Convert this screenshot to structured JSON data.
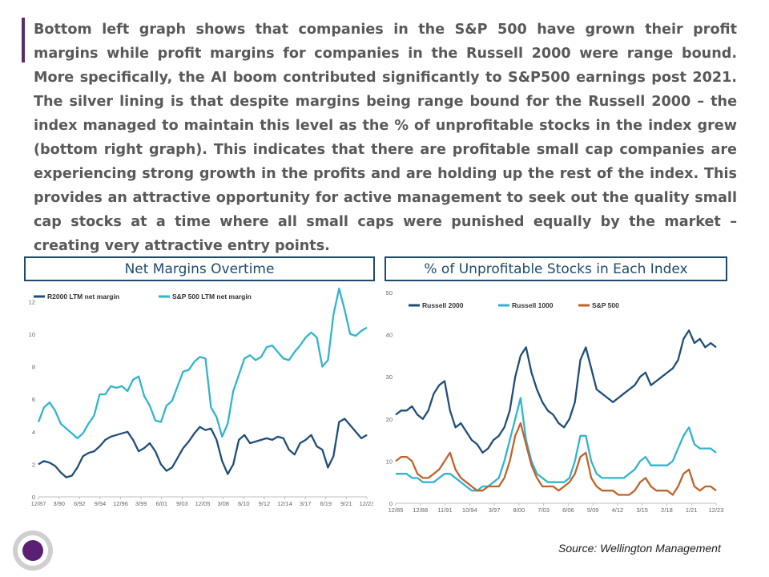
{
  "commentary": "Bottom left graph shows that companies in the S&P 500 have grown their profit margins while profit margins for companies in the Russell 2000 were range bound. More specifically, the AI boom contributed significantly to S&P500 earnings post 2021. The silver lining is that despite margins being range bound for the Russell 2000 – the index managed to maintain this level as the % of unprofitable stocks in the index grew (bottom right graph). This indicates that there are profitable small cap companies are experiencing strong growth in the profits and are holding up the rest of the index. This provides an attractive opportunity for active management to seek out the quality small cap stocks at a time where all small caps were punished equally by the market – creating very attractive entry points.",
  "source": "Source: Wellington Management",
  "colors": {
    "accent": "#5b2a6e",
    "navy": "#1f4e79",
    "light_blue": "#31b4cf",
    "orange": "#c0632a",
    "title_border": "#1f4a6e"
  },
  "chart_data": [
    {
      "type": "line",
      "title": "Net Margins Overtime",
      "x_ticks": [
        "12/87",
        "3/90",
        "6/92",
        "9/94",
        "12/96",
        "3/99",
        "6/01",
        "9/03",
        "12/05",
        "3/08",
        "6/10",
        "9/12",
        "12/14",
        "3/17",
        "6/19",
        "9/21",
        "12/23"
      ],
      "y_ticks": [
        "0",
        "2",
        "4",
        "6",
        "8",
        "10",
        "12"
      ],
      "ylim": [
        0,
        13
      ],
      "legend_position": "top-left",
      "grid": false,
      "series": [
        {
          "name": "R2000 LTM net margin",
          "color": "#1f4e79",
          "values": [
            2.0,
            2.2,
            2.1,
            1.9,
            1.5,
            1.2,
            1.3,
            1.8,
            2.5,
            2.7,
            2.8,
            3.1,
            3.5,
            3.7,
            3.8,
            3.9,
            4.0,
            3.5,
            2.8,
            3.0,
            3.3,
            2.8,
            2.0,
            1.6,
            1.8,
            2.4,
            3.0,
            3.4,
            3.9,
            4.3,
            4.1,
            4.2,
            3.5,
            2.2,
            1.4,
            2.0,
            3.5,
            3.8,
            3.3,
            3.4,
            3.5,
            3.6,
            3.5,
            3.7,
            3.6,
            2.9,
            2.6,
            3.3,
            3.5,
            3.8,
            3.1,
            2.9,
            1.8,
            2.5,
            4.6,
            4.8,
            4.4,
            4.0,
            3.6,
            3.8
          ]
        },
        {
          "name": "S&P 500 LTM net margin",
          "color": "#31b4cf",
          "values": [
            4.6,
            5.5,
            5.8,
            5.3,
            4.5,
            4.2,
            3.9,
            3.6,
            3.9,
            4.5,
            5.0,
            6.3,
            6.3,
            6.8,
            6.7,
            6.8,
            6.5,
            7.2,
            7.4,
            6.2,
            5.6,
            4.7,
            4.6,
            5.6,
            5.9,
            6.8,
            7.7,
            7.8,
            8.3,
            8.6,
            8.5,
            5.5,
            4.9,
            3.7,
            4.5,
            6.5,
            7.5,
            8.5,
            8.7,
            8.4,
            8.6,
            9.2,
            9.3,
            8.9,
            8.5,
            8.4,
            8.9,
            9.3,
            9.8,
            10.1,
            9.8,
            8.0,
            8.4,
            11.2,
            12.8,
            11.5,
            10.0,
            9.9,
            10.2,
            10.4
          ]
        }
      ]
    },
    {
      "type": "line",
      "title": "% of Unprofitable Stocks in Each Index",
      "x_ticks": [
        "12/85",
        "12/88",
        "11/91",
        "10/94",
        "3/97",
        "8/00",
        "7/03",
        "6/06",
        "5/09",
        "4/12",
        "3/15",
        "2/18",
        "1/21",
        "12/23"
      ],
      "y_ticks": [
        "0",
        "10",
        "20",
        "30",
        "40",
        "50"
      ],
      "ylim": [
        0,
        50
      ],
      "legend_position": "top-left",
      "grid": false,
      "series": [
        {
          "name": "Russell 2000",
          "color": "#1f4e79",
          "values": [
            21,
            22,
            22,
            23,
            21,
            20,
            22,
            26,
            28,
            29,
            22,
            18,
            19,
            17,
            15,
            14,
            12,
            13,
            15,
            16,
            18,
            22,
            30,
            35,
            37,
            31,
            27,
            24,
            22,
            21,
            19,
            18,
            20,
            24,
            34,
            37,
            32,
            27,
            26,
            25,
            24,
            25,
            26,
            27,
            28,
            30,
            31,
            28,
            29,
            30,
            31,
            32,
            34,
            39,
            41,
            38,
            39,
            37,
            38,
            37
          ]
        },
        {
          "name": "Russell 1000",
          "color": "#31b4cf",
          "values": [
            7,
            7,
            7,
            6,
            6,
            5,
            5,
            5,
            6,
            7,
            7,
            6,
            5,
            4,
            3,
            3,
            4,
            4,
            5,
            6,
            10,
            15,
            20,
            25,
            15,
            10,
            7,
            6,
            5,
            5,
            5,
            5,
            6,
            10,
            16,
            16,
            10,
            7,
            6,
            6,
            6,
            6,
            6,
            7,
            8,
            10,
            11,
            9,
            9,
            9,
            9,
            10,
            13,
            16,
            18,
            14,
            13,
            13,
            13,
            12
          ]
        },
        {
          "name": "S&P 500",
          "color": "#c0632a",
          "values": [
            10,
            11,
            11,
            10,
            7,
            6,
            6,
            7,
            8,
            10,
            12,
            8,
            6,
            5,
            4,
            3,
            3,
            4,
            4,
            4,
            6,
            10,
            16,
            19,
            14,
            9,
            6,
            4,
            4,
            4,
            3,
            4,
            5,
            7,
            11,
            12,
            6,
            4,
            3,
            3,
            3,
            2,
            2,
            2,
            3,
            5,
            6,
            4,
            3,
            3,
            3,
            2,
            4,
            7,
            8,
            4,
            3,
            4,
            4,
            3
          ]
        }
      ]
    }
  ]
}
